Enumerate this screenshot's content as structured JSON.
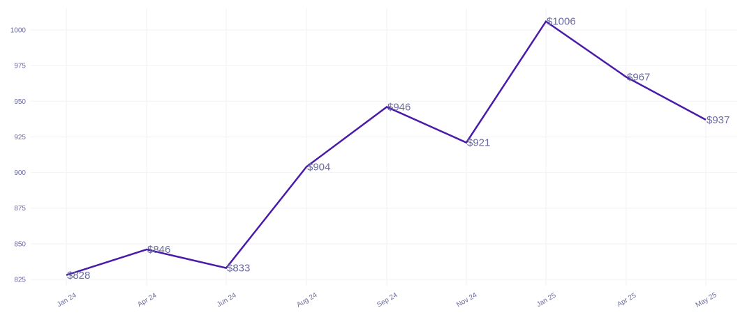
{
  "chart_data": {
    "type": "line",
    "title": "",
    "xlabel": "",
    "ylabel": "",
    "categories": [
      "Jan 24",
      "Apr 24",
      "Jun 24",
      "Aug 24",
      "Sep 24",
      "Nov 24",
      "Jan 25",
      "Apr 25",
      "May 25"
    ],
    "series": [
      {
        "values": [
          828,
          846,
          833,
          904,
          946,
          921,
          1006,
          967,
          937
        ],
        "data_labels": [
          "$828",
          "$846",
          "$833",
          "$904",
          "$946",
          "$921",
          "$1006",
          "$967",
          "$937"
        ],
        "color": "#4a1aa8"
      }
    ],
    "ylim": [
      820,
      1012
    ],
    "yticks": [
      825,
      850,
      875,
      900,
      925,
      950,
      975,
      1000
    ],
    "ytick_labels": [
      "825",
      "850",
      "875",
      "900",
      "925",
      "950",
      "975",
      "1000"
    ],
    "grid": true,
    "legend": "none",
    "colors": {
      "line": "#4a1aa8",
      "text": "#6a6aa0",
      "grid": "#f4f4f8"
    }
  }
}
